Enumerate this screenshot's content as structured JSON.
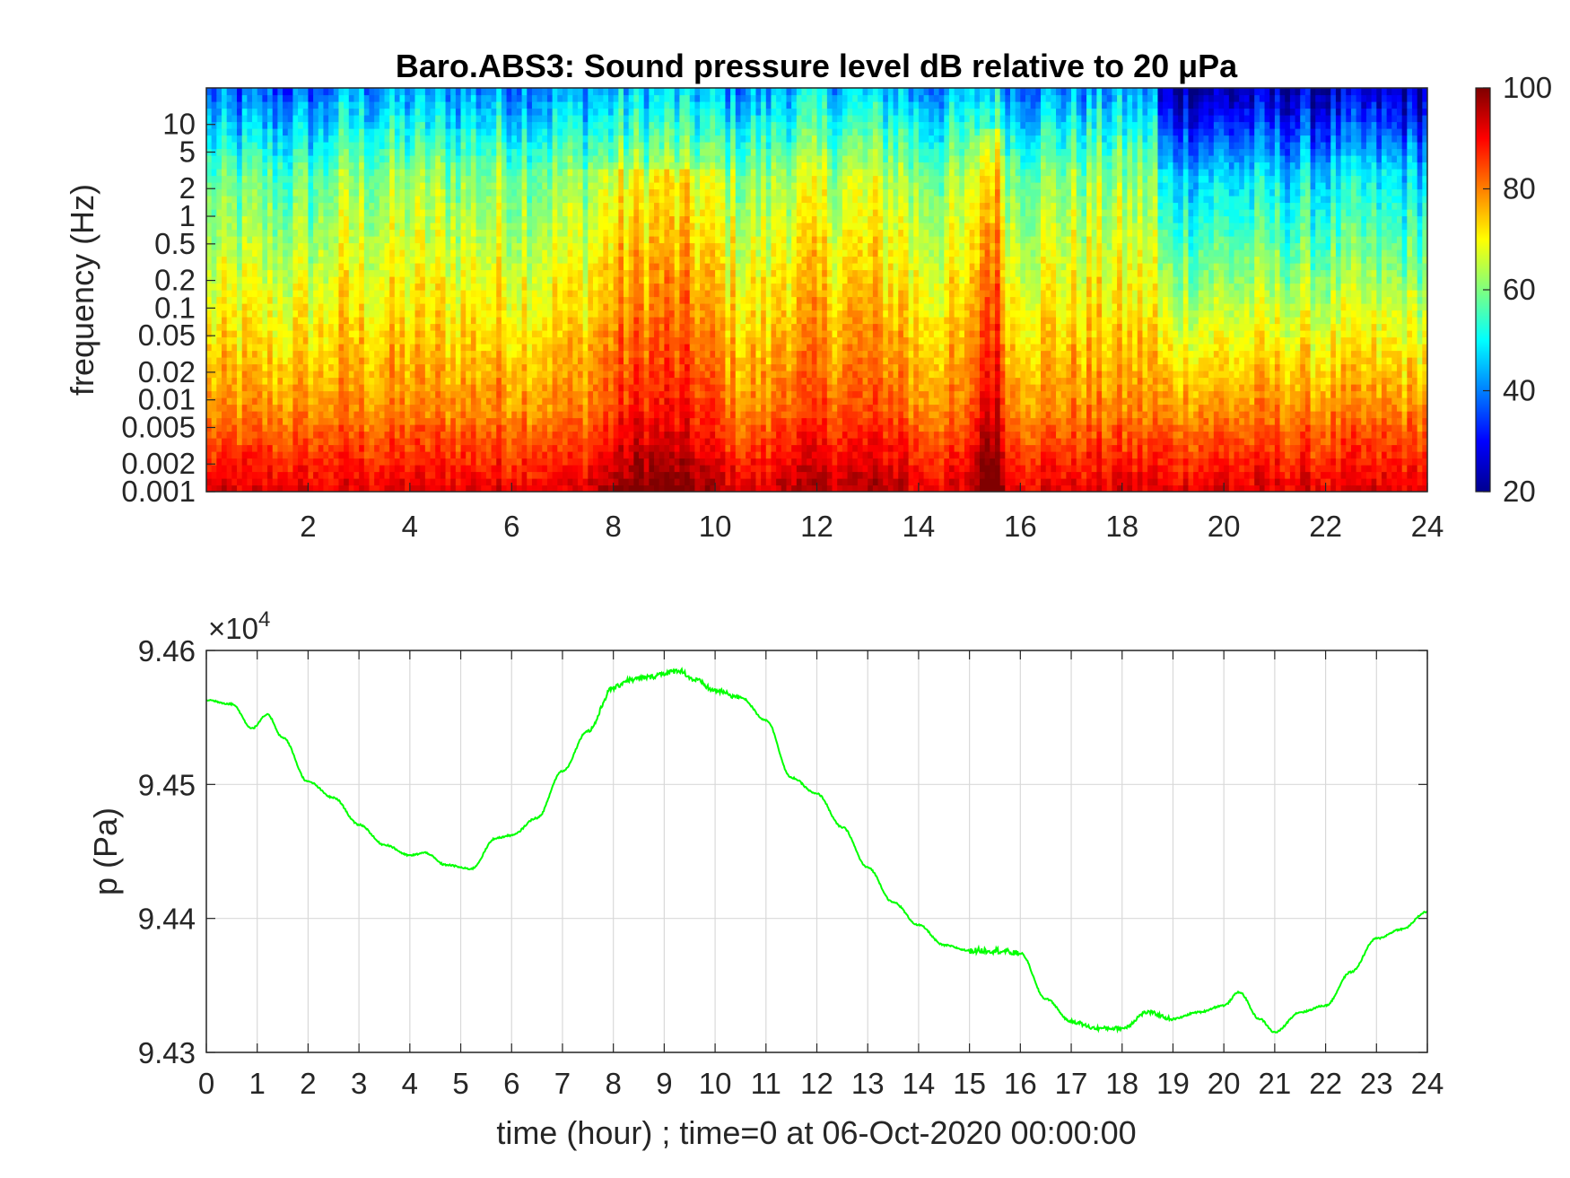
{
  "chart_data": [
    {
      "type": "heatmap",
      "title": "Baro.ABS3: Sound pressure level dB relative to 20 μPa",
      "xlabel": "",
      "ylabel": "frequency (Hz)",
      "xlim": [
        0,
        24
      ],
      "x_ticks": [
        "2",
        "4",
        "6",
        "8",
        "10",
        "12",
        "14",
        "16",
        "18",
        "20",
        "22",
        "24"
      ],
      "y_scale": "log",
      "ylim": [
        0.001,
        25
      ],
      "y_ticks": [
        "0.001",
        "0.002",
        "0.005",
        "0.01",
        "0.02",
        "0.05",
        "0.1",
        "0.2",
        "0.5",
        "1",
        "2",
        "5",
        "10"
      ],
      "colormap": "jet",
      "colorbar": {
        "min": 20,
        "max": 100,
        "ticks": [
          "20",
          "40",
          "60",
          "80",
          "100"
        ]
      },
      "colors": {
        "low": "#00008f",
        "mid": "#7fff7f",
        "high": "#7f0000"
      },
      "high_level_bands_hours": [
        [
          7.3,
          10.5
        ],
        [
          15.0,
          15.8
        ]
      ],
      "quiet_period_hours": [
        18.7,
        24
      ]
    },
    {
      "type": "line",
      "title": "",
      "xlabel": "time (hour) ; time=0 at 06-Oct-2020 00:00:00",
      "ylabel": "p (Pa)",
      "xlim": [
        0,
        24
      ],
      "ylim": [
        94300,
        94600
      ],
      "x_ticks": [
        "0",
        "1",
        "2",
        "3",
        "4",
        "5",
        "6",
        "7",
        "8",
        "9",
        "10",
        "11",
        "12",
        "13",
        "14",
        "15",
        "16",
        "17",
        "18",
        "19",
        "20",
        "21",
        "22",
        "23",
        "24"
      ],
      "y_ticks": [
        "9.43",
        "9.44",
        "9.45",
        "9.46"
      ],
      "y_exponent": {
        "base": "×10",
        "power": "4"
      },
      "grid": true,
      "series": [
        {
          "color": "#00ff00",
          "x": [
            0,
            0.5,
            0.9,
            1.2,
            1.5,
            2,
            2.5,
            3,
            3.5,
            4,
            4.3,
            4.7,
            5.2,
            5.7,
            6,
            6.5,
            7,
            7.5,
            8,
            8.3,
            8.7,
            9,
            9.3,
            9.6,
            10,
            10.5,
            11,
            11.5,
            12,
            12.5,
            13,
            13.5,
            14,
            14.5,
            15,
            15.5,
            16,
            16.5,
            17,
            17.5,
            18,
            18.5,
            19,
            19.5,
            20,
            20.3,
            20.7,
            21,
            21.5,
            22,
            22.5,
            23,
            23.5,
            24
          ],
          "values": [
            94563,
            94560,
            94542,
            94552,
            94535,
            94502,
            94490,
            94470,
            94455,
            94447,
            94449,
            94440,
            94437,
            94460,
            94462,
            94475,
            94510,
            94540,
            94572,
            94578,
            94580,
            94583,
            94585,
            94578,
            94570,
            94565,
            94548,
            94505,
            94493,
            94468,
            94438,
            94412,
            94395,
            94380,
            94376,
            94376,
            94374,
            94340,
            94323,
            94318,
            94318,
            94330,
            94325,
            94330,
            94335,
            94345,
            94325,
            94315,
            94330,
            94335,
            94360,
            94385,
            94392,
            94405
          ]
        }
      ]
    }
  ]
}
